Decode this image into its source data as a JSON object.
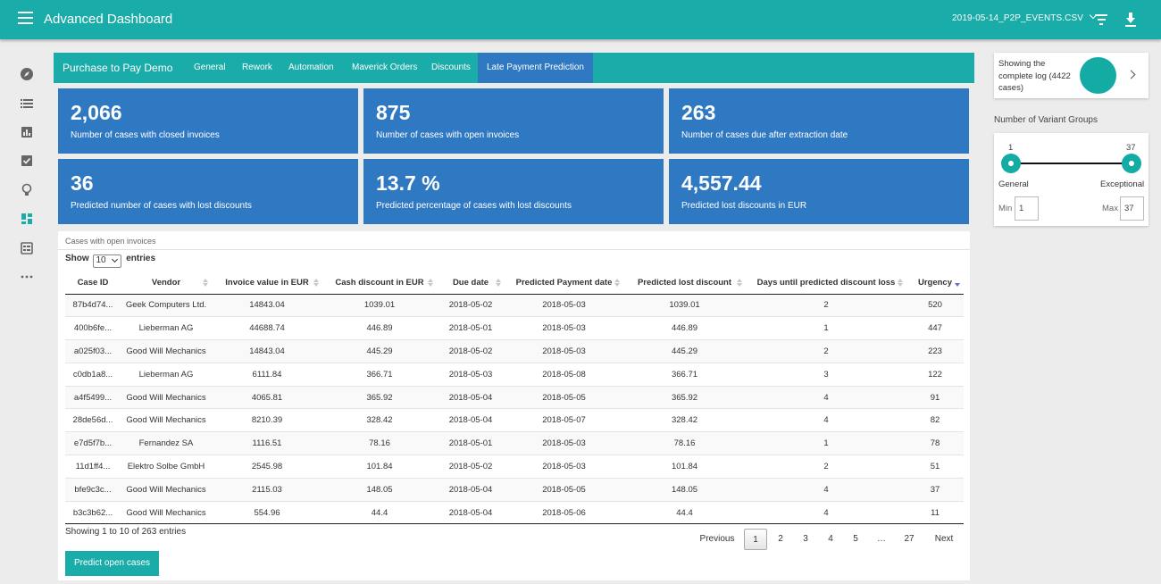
{
  "header": {
    "title": "Advanced Dashboard",
    "file_name": "2019-05-14_P2P_EVENTS.CSV",
    "icons": [
      "menu-icon",
      "chevron-down-icon",
      "filter-icon",
      "download-icon"
    ]
  },
  "sidenav": {
    "icons": [
      "compass-icon",
      "list-icon",
      "bar-chart-icon",
      "checklist-icon",
      "lightbulb-icon",
      "dashboard-icon",
      "table-chart-icon",
      "more-icon"
    ],
    "active": "dashboard-icon"
  },
  "tabs": {
    "brand": "Purchase to Pay Demo",
    "items": [
      "General",
      "Rework",
      "Automation",
      "Maverick Orders",
      "Discounts",
      "Late Payment Prediction"
    ],
    "active_index": 5
  },
  "kpis": [
    {
      "value": "2,066",
      "label": "Number of cases with closed invoices"
    },
    {
      "value": "875",
      "label": "Number of cases with open invoices"
    },
    {
      "value": "263",
      "label": "Number of cases due after extraction date"
    },
    {
      "value": "36",
      "label": "Predicted number of cases with lost discounts"
    },
    {
      "value": "13.7 %",
      "label": "Predicted percentage of cases with lost discounts"
    },
    {
      "value": "4,557.44",
      "label": "Predicted lost discounts in EUR"
    }
  ],
  "table": {
    "panel_title": "Cases with open invoices",
    "show_label": "Show",
    "entries_label": "entries",
    "page_size": "10",
    "columns": [
      "Case ID",
      "Vendor",
      "Invoice value in EUR",
      "Cash discount in EUR",
      "Due date",
      "Predicted Payment date",
      "Predicted lost discount",
      "Days until predicted discount loss",
      "Urgency"
    ],
    "sorted_column": "Urgency",
    "sort_direction": "desc",
    "rows": [
      [
        "87b4d74...",
        "Geek Computers Ltd.",
        "14843.04",
        "1039.01",
        "2018-05-02",
        "2018-05-03",
        "1039.01",
        "2",
        "520"
      ],
      [
        "400b6fe...",
        "Lieberman AG",
        "44688.74",
        "446.89",
        "2018-05-01",
        "2018-05-03",
        "446.89",
        "1",
        "447"
      ],
      [
        "a025f03...",
        "Good Will Mechanics",
        "14843.04",
        "445.29",
        "2018-05-02",
        "2018-05-03",
        "445.29",
        "2",
        "223"
      ],
      [
        "c0db1a8...",
        "Lieberman AG",
        "6111.84",
        "366.71",
        "2018-05-03",
        "2018-05-08",
        "366.71",
        "3",
        "122"
      ],
      [
        "a4f5499...",
        "Good Will Mechanics",
        "4065.81",
        "365.92",
        "2018-05-04",
        "2018-05-05",
        "365.92",
        "4",
        "91"
      ],
      [
        "28de56d...",
        "Good Will Mechanics",
        "8210.39",
        "328.42",
        "2018-05-04",
        "2018-05-07",
        "328.42",
        "4",
        "82"
      ],
      [
        "e7d5f7b...",
        "Fernandez SA",
        "1116.51",
        "78.16",
        "2018-05-01",
        "2018-05-03",
        "78.16",
        "1",
        "78"
      ],
      [
        "11d1ff4...",
        "Elektro Solbe GmbH",
        "2545.98",
        "101.84",
        "2018-05-02",
        "2018-05-03",
        "101.84",
        "2",
        "51"
      ],
      [
        "bfe9c3c...",
        "Good Will Mechanics",
        "2115.03",
        "148.05",
        "2018-05-04",
        "2018-05-05",
        "148.05",
        "4",
        "37"
      ],
      [
        "b3c3b62...",
        "Good Will Mechanics",
        "554.96",
        "44.4",
        "2018-05-04",
        "2018-05-06",
        "44.4",
        "4",
        "11"
      ]
    ],
    "info": "Showing 1 to 10 of 263 entries",
    "pagination": {
      "previous": "Previous",
      "pages": [
        "1",
        "2",
        "3",
        "4",
        "5",
        "…",
        "27"
      ],
      "next": "Next",
      "current": "1"
    },
    "predict_button": "Predict open cases"
  },
  "log_card": {
    "text": "Showing the complete log (4422 cases)"
  },
  "variant_slider": {
    "title": "Number of Variant Groups",
    "min_value": "1",
    "max_value": "37",
    "left_label": "General",
    "right_label": "Exceptional",
    "min_label": "Min",
    "max_label": "Max",
    "min_input": "1",
    "max_input": "37"
  },
  "colors": {
    "teal": "#1aaca8",
    "blue": "#2f78c2",
    "background": "#ececec"
  }
}
